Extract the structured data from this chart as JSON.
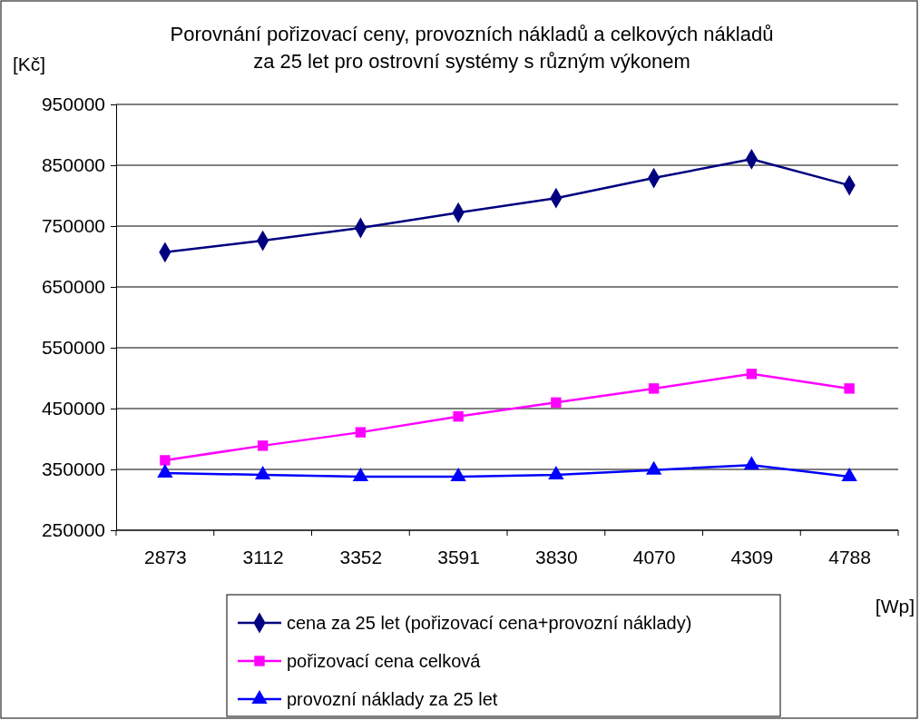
{
  "chart_data": {
    "type": "line",
    "title": "Porovnání pořizovací ceny, provozních nákladů a celkových nákladů\nza 25 let pro ostrovní systémy s různým výkonem",
    "ylabel": "[Kč]",
    "xlabel": "[Wp]",
    "categories": [
      "2873",
      "3112",
      "3352",
      "3591",
      "3830",
      "4070",
      "4309",
      "4788"
    ],
    "series": [
      {
        "name": "cena za 25 let (pořizovací cena+provozní náklady)",
        "color": "#000080",
        "marker": "diamond",
        "values": [
          707000,
          726000,
          747000,
          772000,
          796000,
          829000,
          860000,
          817000
        ]
      },
      {
        "name": "pořizovací cena celková",
        "color": "#ff00ff",
        "marker": "square",
        "values": [
          365000,
          389000,
          411000,
          437000,
          460000,
          483000,
          507000,
          483000
        ]
      },
      {
        "name": "provozní náklady za 25 let",
        "color": "#0000ff",
        "marker": "triangle",
        "values": [
          344000,
          341000,
          338000,
          338000,
          341000,
          349000,
          357000,
          338000
        ]
      }
    ],
    "ylim": [
      250000,
      950000
    ],
    "yticks": [
      250000,
      350000,
      450000,
      550000,
      650000,
      750000,
      850000,
      950000
    ],
    "grid": "y",
    "legend": "bottom",
    "line_style": "solid"
  }
}
